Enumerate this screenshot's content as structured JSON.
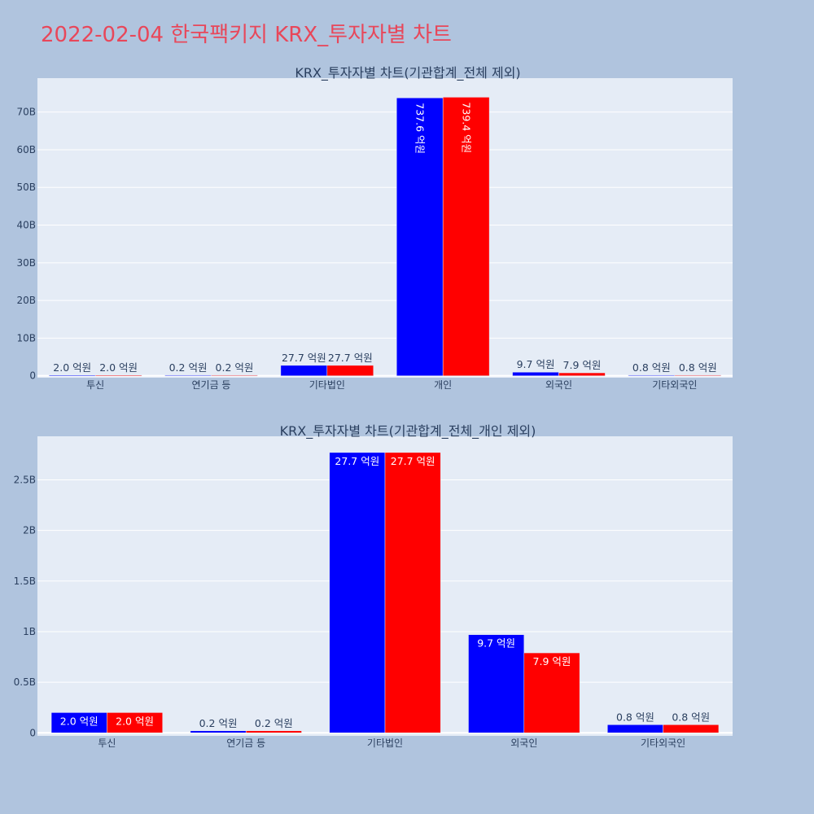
{
  "page_title": "2022-02-04 한국팩키지 KRX_투자자별 차트",
  "colors": {
    "series_a": "#0000ff",
    "series_b": "#ff0000",
    "plot_bg": "#e5ecf6",
    "page_bg": "#b0c4de",
    "title": "#e8475a"
  },
  "chart_data": [
    {
      "type": "bar",
      "title": "KRX_투자자별 차트(기관합계_전체 제외)",
      "categories": [
        "투신",
        "연기금 등",
        "기타법인",
        "개인",
        "외국인",
        "기타외국인"
      ],
      "series": [
        {
          "values": [
            0.2,
            0.02,
            2.77,
            73.76,
            0.97,
            0.08
          ],
          "labels": [
            "2.0 억원",
            "0.2 억원",
            "27.7 억원",
            "737.6 억원",
            "9.7 억원",
            "0.8 억원"
          ]
        },
        {
          "values": [
            0.2,
            0.02,
            2.77,
            73.94,
            0.79,
            0.08
          ],
          "labels": [
            "2.0 억원",
            "0.2 억원",
            "27.7 억원",
            "739.4 억원",
            "7.9 억원",
            "0.8 억원"
          ]
        }
      ],
      "ylim": [
        -0.5,
        79
      ],
      "yticks": [
        0,
        10,
        20,
        30,
        40,
        50,
        60,
        70
      ],
      "ytick_labels": [
        "0",
        "10B",
        "20B",
        "30B",
        "40B",
        "50B",
        "60B",
        "70B"
      ],
      "grid": true
    },
    {
      "type": "bar",
      "title": "KRX_투자자별 차트(기관합계_전체_개인 제외)",
      "categories": [
        "투신",
        "연기금 등",
        "기타법인",
        "외국인",
        "기타외국인"
      ],
      "series": [
        {
          "values": [
            0.2,
            0.02,
            2.77,
            0.97,
            0.08
          ],
          "labels": [
            "2.0 억원",
            "0.2 억원",
            "27.7 억원",
            "9.7 억원",
            "0.8 억원"
          ]
        },
        {
          "values": [
            0.2,
            0.02,
            2.77,
            0.79,
            0.08
          ],
          "labels": [
            "2.0 억원",
            "0.2 억원",
            "27.7 억원",
            "7.9 억원",
            "0.8 억원"
          ]
        }
      ],
      "ylim": [
        -0.03,
        2.93
      ],
      "yticks": [
        0,
        0.5,
        1,
        1.5,
        2,
        2.5
      ],
      "ytick_labels": [
        "0",
        "0.5B",
        "1B",
        "1.5B",
        "2B",
        "2.5B"
      ],
      "grid": true
    }
  ]
}
